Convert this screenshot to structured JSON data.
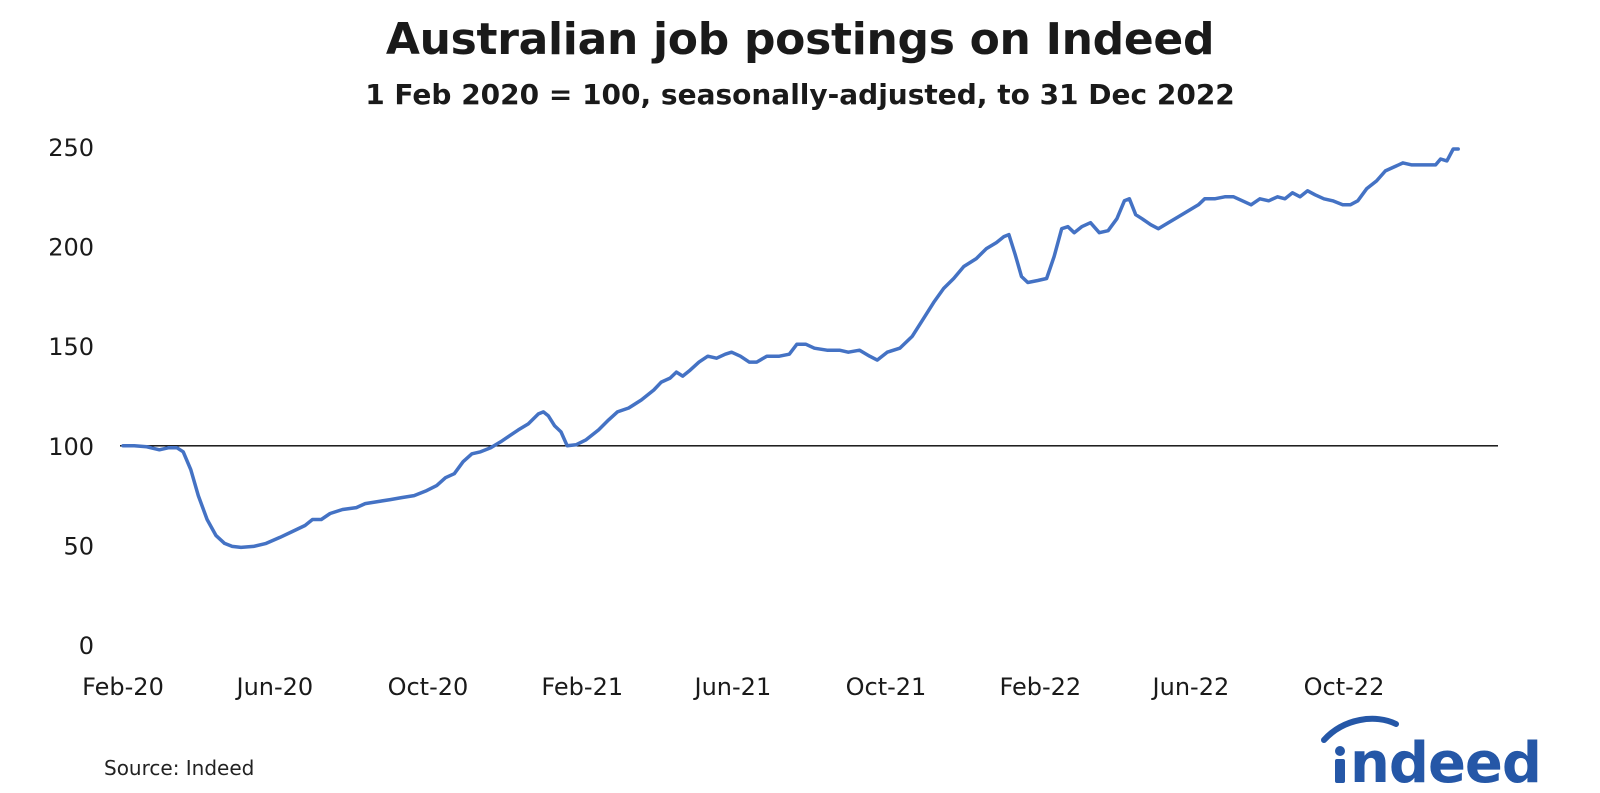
{
  "chart_data": {
    "type": "line",
    "title": "Australian job postings on Indeed",
    "subtitle": "1 Feb 2020 = 100, seasonally-adjusted, to 31 Dec 2022",
    "xlabel": "",
    "ylabel": "",
    "ylim": [
      0,
      250
    ],
    "y_ticks": [
      "0",
      "50",
      "100",
      "150",
      "200",
      "250"
    ],
    "x_tick_labels": [
      "Feb-20",
      "Jun-20",
      "Oct-20",
      "Feb-21",
      "Jun-21",
      "Oct-21",
      "Feb-22",
      "Jun-22",
      "Oct-22"
    ],
    "reference_line": 100,
    "grid": false,
    "legend": "none",
    "series": [
      {
        "color": "#4472c4",
        "points": [
          [
            "2020-02-01",
            100
          ],
          [
            "2020-02-10",
            100
          ],
          [
            "2020-02-20",
            99.5
          ],
          [
            "2020-03-01",
            98
          ],
          [
            "2020-03-08",
            99
          ],
          [
            "2020-03-15",
            99
          ],
          [
            "2020-03-20",
            97
          ],
          [
            "2020-03-26",
            88
          ],
          [
            "2020-04-01",
            75
          ],
          [
            "2020-04-08",
            63
          ],
          [
            "2020-04-15",
            55
          ],
          [
            "2020-04-22",
            51
          ],
          [
            "2020-04-28",
            49.5
          ],
          [
            "2020-05-05",
            49
          ],
          [
            "2020-05-15",
            49.5
          ],
          [
            "2020-05-25",
            51
          ],
          [
            "2020-06-05",
            54
          ],
          [
            "2020-06-15",
            57
          ],
          [
            "2020-06-25",
            60
          ],
          [
            "2020-07-01",
            63
          ],
          [
            "2020-07-08",
            63
          ],
          [
            "2020-07-15",
            66
          ],
          [
            "2020-07-25",
            68
          ],
          [
            "2020-08-05",
            69
          ],
          [
            "2020-08-12",
            71
          ],
          [
            "2020-08-22",
            72
          ],
          [
            "2020-09-01",
            73
          ],
          [
            "2020-09-10",
            74
          ],
          [
            "2020-09-20",
            75
          ],
          [
            "2020-09-30",
            77.5
          ],
          [
            "2020-10-08",
            80
          ],
          [
            "2020-10-15",
            84
          ],
          [
            "2020-10-22",
            86
          ],
          [
            "2020-10-29",
            92
          ],
          [
            "2020-11-05",
            96
          ],
          [
            "2020-11-12",
            97
          ],
          [
            "2020-11-20",
            99
          ],
          [
            "2020-11-28",
            102
          ],
          [
            "2020-12-05",
            105
          ],
          [
            "2020-12-12",
            108
          ],
          [
            "2020-12-20",
            111
          ],
          [
            "2020-12-28",
            116
          ],
          [
            "2021-01-01",
            117
          ],
          [
            "2021-01-05",
            115
          ],
          [
            "2021-01-10",
            110
          ],
          [
            "2021-01-15",
            107
          ],
          [
            "2021-01-20",
            100
          ],
          [
            "2021-01-27",
            100.5
          ],
          [
            "2021-02-04",
            103
          ],
          [
            "2021-02-14",
            108
          ],
          [
            "2021-02-22",
            113
          ],
          [
            "2021-03-01",
            117
          ],
          [
            "2021-03-10",
            119
          ],
          [
            "2021-03-20",
            123
          ],
          [
            "2021-03-30",
            128
          ],
          [
            "2021-04-05",
            132
          ],
          [
            "2021-04-12",
            134
          ],
          [
            "2021-04-17",
            137
          ],
          [
            "2021-04-22",
            135
          ],
          [
            "2021-04-28",
            138
          ],
          [
            "2021-05-05",
            142
          ],
          [
            "2021-05-12",
            145
          ],
          [
            "2021-05-19",
            144
          ],
          [
            "2021-05-26",
            146
          ],
          [
            "2021-05-31",
            147
          ],
          [
            "2021-06-07",
            145
          ],
          [
            "2021-06-14",
            142
          ],
          [
            "2021-06-20",
            142
          ],
          [
            "2021-06-28",
            145
          ],
          [
            "2021-07-08",
            145
          ],
          [
            "2021-07-16",
            146
          ],
          [
            "2021-07-22",
            151
          ],
          [
            "2021-07-29",
            151
          ],
          [
            "2021-08-05",
            149
          ],
          [
            "2021-08-15",
            148
          ],
          [
            "2021-08-25",
            148
          ],
          [
            "2021-09-01",
            147
          ],
          [
            "2021-09-10",
            148
          ],
          [
            "2021-09-18",
            145
          ],
          [
            "2021-09-24",
            143
          ],
          [
            "2021-10-02",
            147
          ],
          [
            "2021-10-12",
            149
          ],
          [
            "2021-10-22",
            155
          ],
          [
            "2021-10-30",
            163
          ],
          [
            "2021-11-08",
            172
          ],
          [
            "2021-11-16",
            179
          ],
          [
            "2021-11-24",
            184
          ],
          [
            "2021-12-02",
            190
          ],
          [
            "2021-12-12",
            194
          ],
          [
            "2021-12-20",
            199
          ],
          [
            "2021-12-28",
            202
          ],
          [
            "2022-01-03",
            205
          ],
          [
            "2022-01-07",
            206
          ],
          [
            "2022-01-12",
            196
          ],
          [
            "2022-01-17",
            185
          ],
          [
            "2022-01-22",
            182
          ],
          [
            "2022-01-30",
            183
          ],
          [
            "2022-02-06",
            184
          ],
          [
            "2022-02-12",
            195
          ],
          [
            "2022-02-18",
            209
          ],
          [
            "2022-02-23",
            210
          ],
          [
            "2022-02-28",
            207
          ],
          [
            "2022-03-06",
            210
          ],
          [
            "2022-03-13",
            212
          ],
          [
            "2022-03-20",
            207
          ],
          [
            "2022-03-27",
            208
          ],
          [
            "2022-04-03",
            214
          ],
          [
            "2022-04-09",
            223
          ],
          [
            "2022-04-13",
            224
          ],
          [
            "2022-04-18",
            216
          ],
          [
            "2022-04-23",
            214
          ],
          [
            "2022-04-30",
            211
          ],
          [
            "2022-05-06",
            209
          ],
          [
            "2022-05-14",
            212
          ],
          [
            "2022-05-22",
            215
          ],
          [
            "2022-05-30",
            218
          ],
          [
            "2022-06-07",
            221
          ],
          [
            "2022-06-12",
            224
          ],
          [
            "2022-06-20",
            224
          ],
          [
            "2022-06-28",
            225
          ],
          [
            "2022-07-05",
            225
          ],
          [
            "2022-07-12",
            223
          ],
          [
            "2022-07-19",
            221
          ],
          [
            "2022-07-26",
            224
          ],
          [
            "2022-08-02",
            223
          ],
          [
            "2022-08-09",
            225
          ],
          [
            "2022-08-15",
            224
          ],
          [
            "2022-08-21",
            227
          ],
          [
            "2022-08-27",
            225
          ],
          [
            "2022-09-02",
            228
          ],
          [
            "2022-09-08",
            226
          ],
          [
            "2022-09-15",
            224
          ],
          [
            "2022-09-22",
            223
          ],
          [
            "2022-09-30",
            221
          ],
          [
            "2022-10-06",
            221
          ],
          [
            "2022-10-12",
            223
          ],
          [
            "2022-10-19",
            229
          ],
          [
            "2022-10-27",
            233
          ],
          [
            "2022-11-03",
            238
          ],
          [
            "2022-11-10",
            240
          ],
          [
            "2022-11-17",
            242
          ],
          [
            "2022-11-24",
            241
          ],
          [
            "2022-12-01",
            241
          ],
          [
            "2022-12-07",
            241
          ],
          [
            "2022-12-13",
            241
          ],
          [
            "2022-12-17",
            244
          ],
          [
            "2022-12-22",
            243
          ],
          [
            "2022-12-27",
            249
          ],
          [
            "2022-12-31",
            249
          ]
        ]
      }
    ]
  },
  "footer": {
    "source": "Source: Indeed",
    "logo_text": "indeed"
  }
}
